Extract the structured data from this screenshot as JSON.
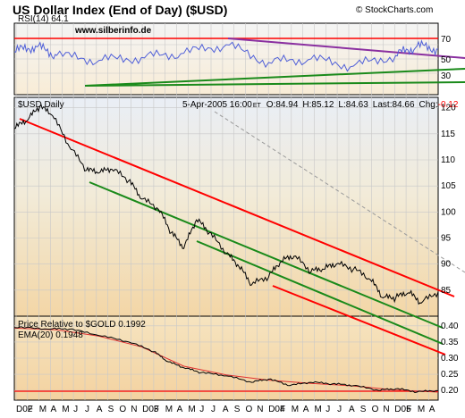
{
  "header": {
    "title": "US Dollar Index (End of Day) ($USD)",
    "source": "© StockCharts.com"
  },
  "chart_data": [
    {
      "type": "line",
      "panel": "rsi",
      "label": "RSI(14)",
      "value": "64.1",
      "watermark": "www.silberinfo.de",
      "ylim": [
        0,
        100
      ],
      "yticks": [
        "70",
        "50",
        "30"
      ],
      "trendlines_note": "red horizontal at 70, purple descending, two green rising",
      "series": [
        {
          "x": [
            0,
            0.05,
            0.1,
            0.2,
            0.3,
            0.4,
            0.5,
            0.6,
            0.7,
            0.8,
            0.9,
            0.95,
            1.0
          ],
          "values": [
            60,
            68,
            55,
            48,
            52,
            58,
            70,
            45,
            50,
            40,
            55,
            68,
            64.1
          ]
        }
      ],
      "colors": {
        "line": "#4f5fd8",
        "red": "#ff0000",
        "purple": "#8a2fa0",
        "green": "#1a8a1a"
      }
    },
    {
      "type": "line",
      "panel": "price",
      "label": "$USD Daily",
      "info": {
        "date": "5-Apr-2005 16:00",
        "tz": "ET",
        "open": "O:84.94",
        "high": "H:85.12",
        "low": "L:84.63",
        "last": "Last:84.66",
        "chg_label": "Chg:",
        "chg": "-0.12"
      },
      "ylim": [
        80,
        122
      ],
      "yticks": [
        "120",
        "115",
        "110",
        "105",
        "100",
        "95",
        "90",
        "85"
      ],
      "series": [
        {
          "name": "$USD",
          "x": [
            0,
            0.03,
            0.06,
            0.09,
            0.13,
            0.17,
            0.2,
            0.23,
            0.27,
            0.3,
            0.34,
            0.37,
            0.4,
            0.43,
            0.46,
            0.5,
            0.53,
            0.56,
            0.6,
            0.63,
            0.66,
            0.7,
            0.73,
            0.76,
            0.8,
            0.84,
            0.87,
            0.9,
            0.93,
            0.96,
            1.0
          ],
          "values": [
            116,
            117.5,
            120.2,
            118.5,
            112.5,
            108,
            107.5,
            108.2,
            106,
            102.5,
            100.5,
            96,
            93,
            98.5,
            96,
            92,
            89.5,
            86,
            87.5,
            90.5,
            91.5,
            88.5,
            89,
            90,
            89,
            87,
            83.5,
            83.5,
            84.5,
            82.5,
            84.66
          ]
        }
      ],
      "colors": {
        "price": "#000000",
        "red": "#ff0000",
        "green": "#1a8a1a",
        "dashed": "#9a9a9a"
      }
    },
    {
      "type": "line",
      "panel": "ratio",
      "label1": "Price Relative to $GOLD 0.1992",
      "label2": "EMA(20) 0.1948",
      "ylim": [
        0.17,
        0.43
      ],
      "yticks": [
        "0.40",
        "0.35",
        "0.30",
        "0.25",
        "0.20"
      ],
      "series": [
        {
          "name": "Price Relative to $GOLD",
          "x": [
            0,
            0.08,
            0.13,
            0.2,
            0.27,
            0.33,
            0.36,
            0.4,
            0.44,
            0.5,
            0.56,
            0.6,
            0.65,
            0.7,
            0.75,
            0.8,
            0.86,
            0.9,
            0.95,
            1.0
          ],
          "values": [
            0.395,
            0.39,
            0.39,
            0.37,
            0.35,
            0.32,
            0.29,
            0.27,
            0.255,
            0.245,
            0.225,
            0.235,
            0.215,
            0.225,
            0.22,
            0.215,
            0.2,
            0.205,
            0.195,
            0.1992
          ]
        },
        {
          "name": "EMA(20)",
          "x": [
            0,
            0.1,
            0.2,
            0.3,
            0.4,
            0.5,
            0.6,
            0.7,
            0.8,
            0.9,
            1.0
          ],
          "values": [
            0.393,
            0.388,
            0.368,
            0.335,
            0.275,
            0.248,
            0.232,
            0.222,
            0.214,
            0.201,
            0.1948
          ]
        }
      ],
      "colors": {
        "ratio": "#000000",
        "ema": "#e03030",
        "red": "#ff0000"
      }
    }
  ],
  "x_axis": {
    "labels": [
      "D02",
      "F",
      "M",
      "A",
      "M",
      "J",
      "J",
      "A",
      "S",
      "O",
      "N",
      "D03",
      "F",
      "M",
      "A",
      "M",
      "J",
      "J",
      "A",
      "S",
      "O",
      "N",
      "D04",
      "F",
      "M",
      "A",
      "M",
      "J",
      "J",
      "A",
      "S",
      "O",
      "N",
      "D05",
      "F",
      "M",
      "A"
    ]
  }
}
